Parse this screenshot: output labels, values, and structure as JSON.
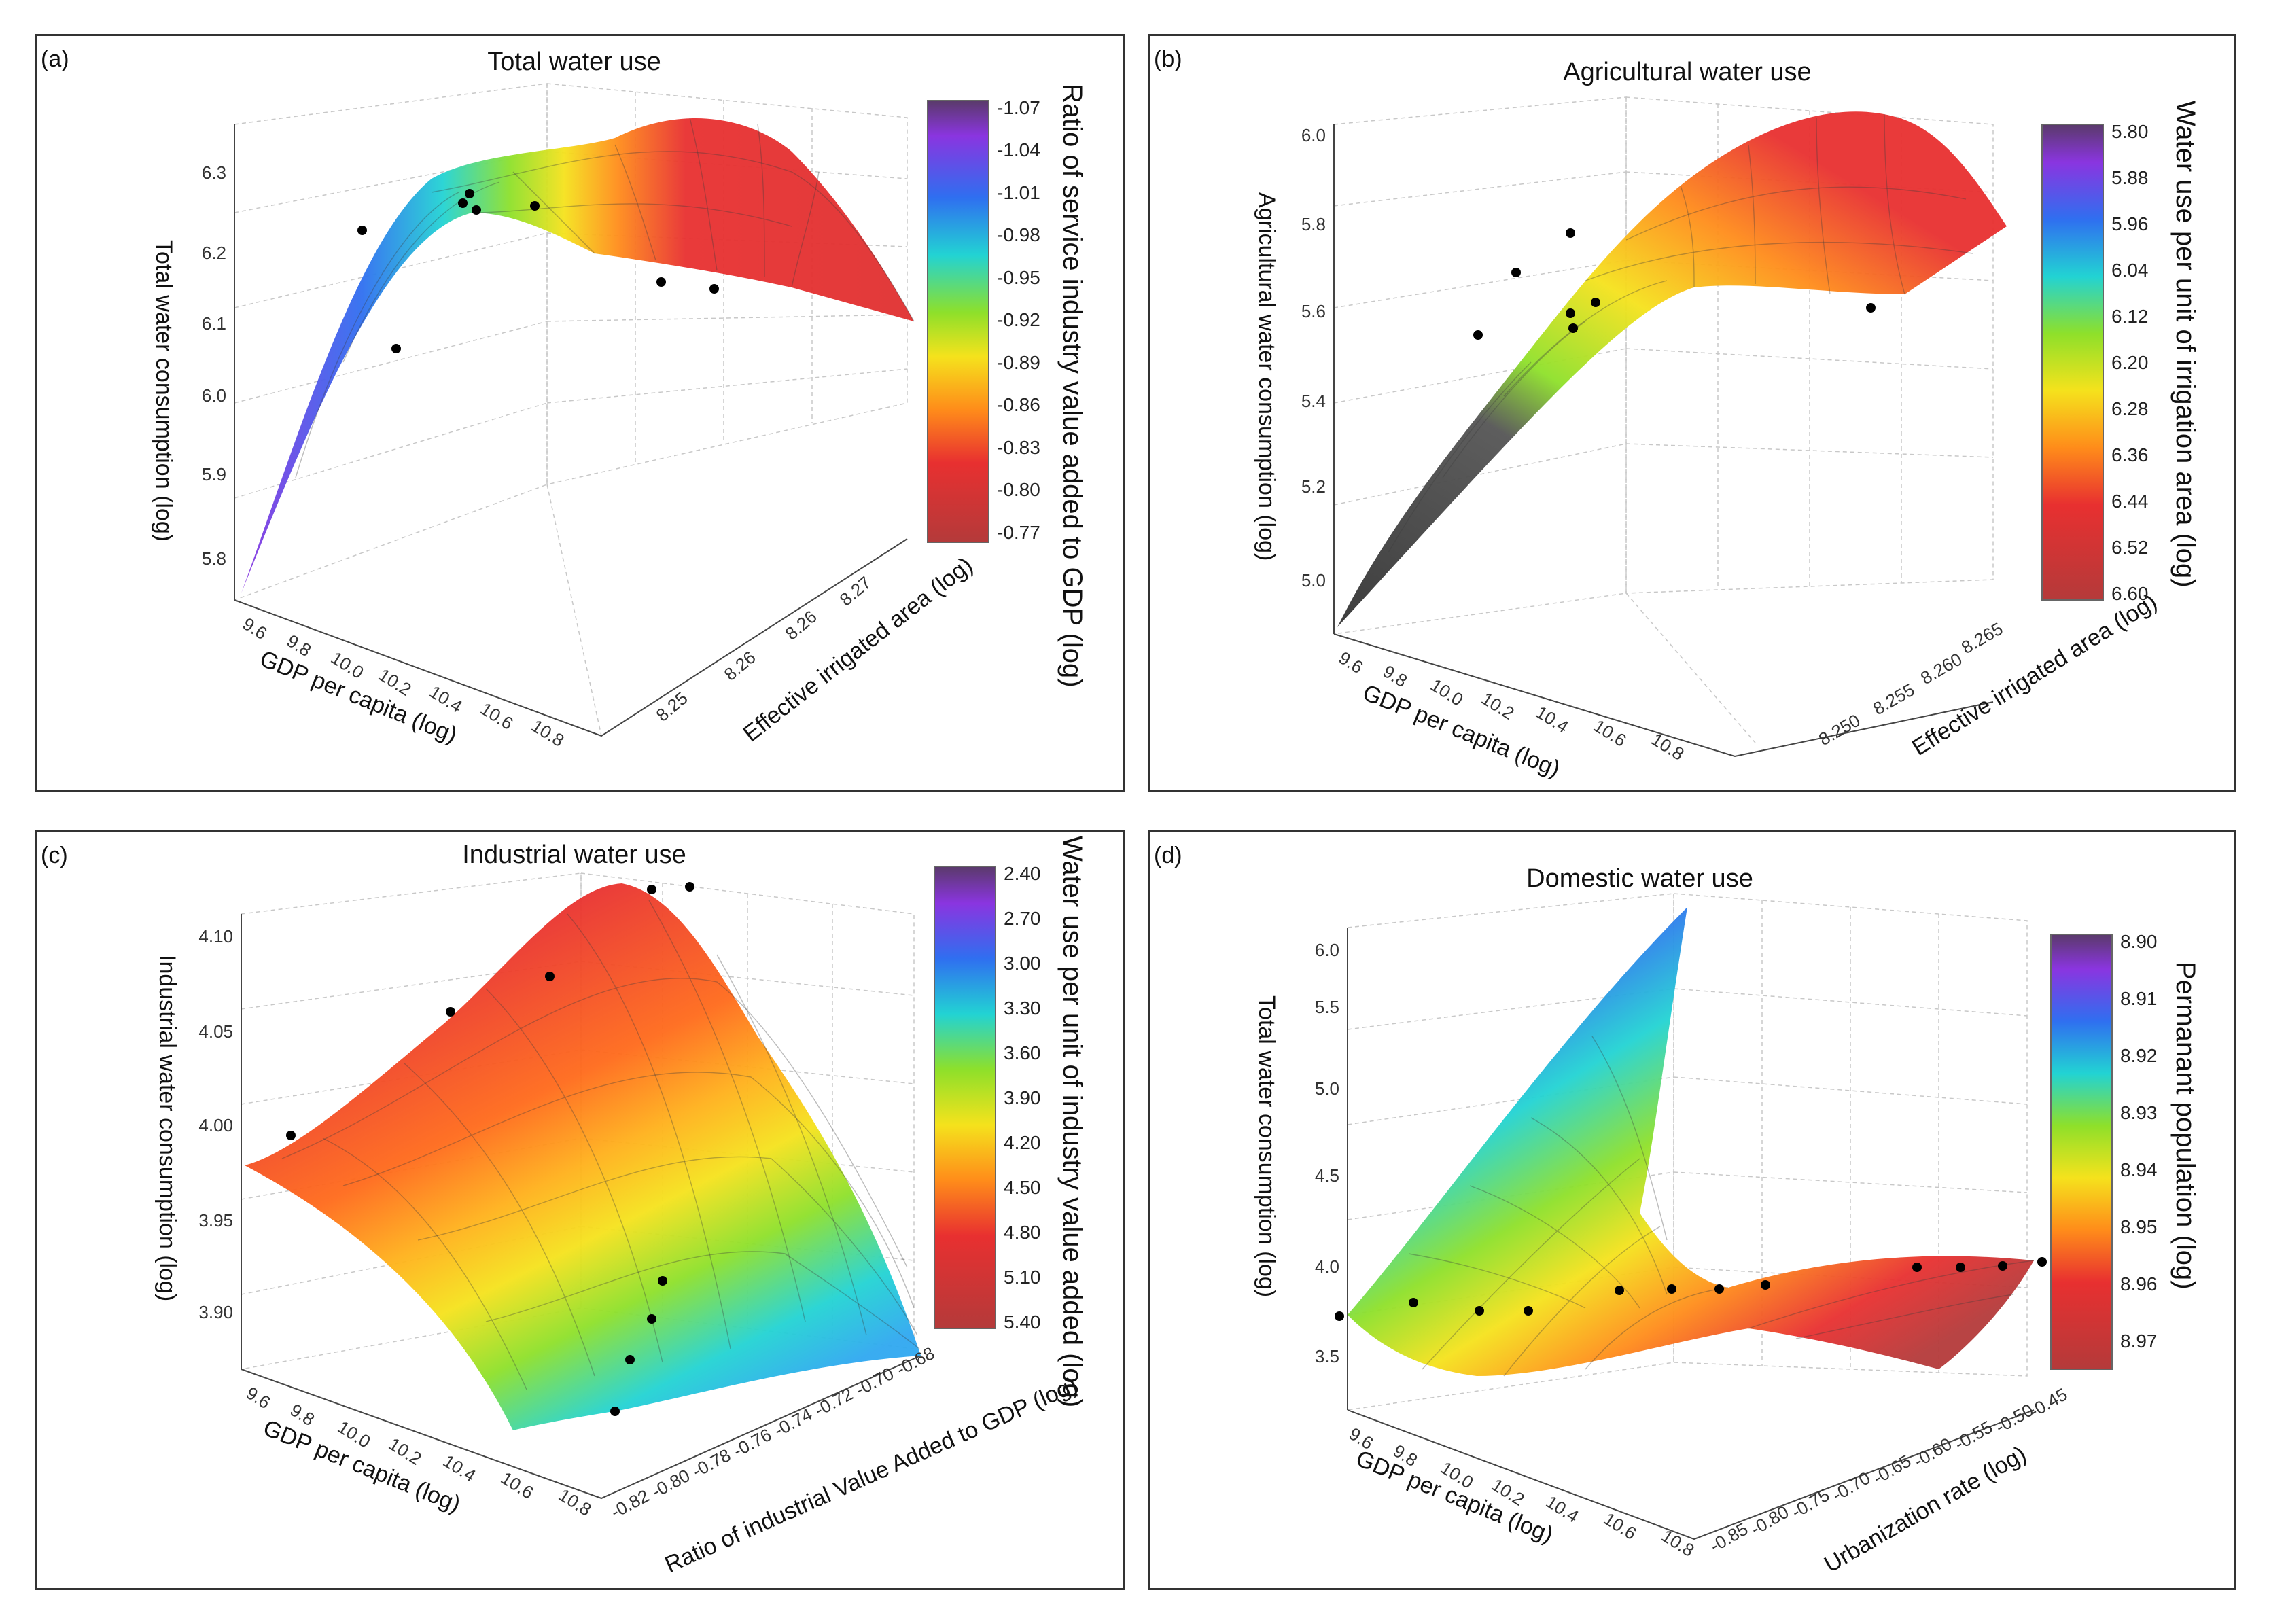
{
  "chart_data": [
    {
      "panel_label": "(a)",
      "type": "surface3d",
      "title": "Total water use",
      "z_label": "Total water consumption (log)",
      "x_label": "GDP per capita (log)",
      "y_label": "Effective irrigated area (log)",
      "z_ticks": [
        "5.8",
        "5.9",
        "6.0",
        "6.1",
        "6.2",
        "6.3"
      ],
      "x_ticks": [
        "9.6",
        "9.8",
        "10.0",
        "10.2",
        "10.4",
        "10.6",
        "10.8"
      ],
      "y_ticks": [
        "8.25",
        "8.26",
        "8.26",
        "8.27"
      ],
      "colorbar_label": "Ratio of service industry value added to GDP (log)",
      "colorbar_ticks": [
        "-1.07",
        "-1.04",
        "-1.01",
        "-0.98",
        "-0.95",
        "-0.92",
        "-0.89",
        "-0.86",
        "-0.83",
        "-0.80",
        "-0.77"
      ],
      "colors": [
        "#b43a3a",
        "#e83030",
        "#ff8c1a",
        "#f5e21c",
        "#8ee02a",
        "#22d3d3",
        "#2f6ff0",
        "#8a35e0",
        "#5a3a6a"
      ]
    },
    {
      "panel_label": "(b)",
      "type": "surface3d",
      "title": "Agricultural water use",
      "z_label": "Agricultural water consumption (log)",
      "x_label": "GDP per capita (log)",
      "y_label": "Effective irrigated area (log)",
      "z_ticks": [
        "5.0",
        "5.2",
        "5.4",
        "5.6",
        "5.8",
        "6.0"
      ],
      "x_ticks": [
        "9.6",
        "9.8",
        "10.0",
        "10.2",
        "10.4",
        "10.6",
        "10.8"
      ],
      "y_ticks": [
        "8.250",
        "8.255",
        "8.260",
        "8.265"
      ],
      "colorbar_label": "Water use per unit of irrigation area (log)",
      "colorbar_ticks": [
        "5.80",
        "5.88",
        "5.96",
        "6.04",
        "6.12",
        "6.20",
        "6.28",
        "6.36",
        "6.44",
        "6.52",
        "6.60"
      ]
    },
    {
      "panel_label": "(c)",
      "type": "surface3d",
      "title": "Industrial water use",
      "z_label": "Industrial water consumption (log)",
      "x_label": "GDP per capita (log)",
      "y_label": "Ratio of industrial Value Added to GDP (log)",
      "z_ticks": [
        "3.90",
        "3.95",
        "4.00",
        "4.05",
        "4.10"
      ],
      "x_ticks": [
        "9.6",
        "9.8",
        "10.0",
        "10.2",
        "10.4",
        "10.6",
        "10.8"
      ],
      "y_ticks": [
        "-0.82",
        "-0.80",
        "-0.78",
        "-0.76",
        "-0.74",
        "-0.72",
        "-0.70",
        "-0.68"
      ],
      "colorbar_label": "Water use per unit of industry value added (log)",
      "colorbar_ticks": [
        "2.40",
        "2.70",
        "3.00",
        "3.30",
        "3.60",
        "3.90",
        "4.20",
        "4.50",
        "4.80",
        "5.10",
        "5.40"
      ]
    },
    {
      "panel_label": "(d)",
      "type": "surface3d",
      "title": "Domestic water use",
      "z_label": "Total water consumption (log)",
      "x_label": "GDP per capita (log)",
      "y_label": "Urbanization rate (log)",
      "z_ticks": [
        "3.5",
        "4.0",
        "4.5",
        "5.0",
        "5.5",
        "6.0"
      ],
      "x_ticks": [
        "9.6",
        "9.8",
        "10.0",
        "10.2",
        "10.4",
        "10.6",
        "10.8"
      ],
      "y_ticks": [
        "-0.85",
        "-0.80",
        "-0.75",
        "-0.70",
        "-0.65",
        "-0.60",
        "-0.55",
        "-0.50",
        "-0.45"
      ],
      "colorbar_label": "Permanant population (log)",
      "colorbar_ticks": [
        "8.90",
        "8.91",
        "8.92",
        "8.93",
        "8.94",
        "8.95",
        "8.96",
        "8.97"
      ]
    }
  ]
}
